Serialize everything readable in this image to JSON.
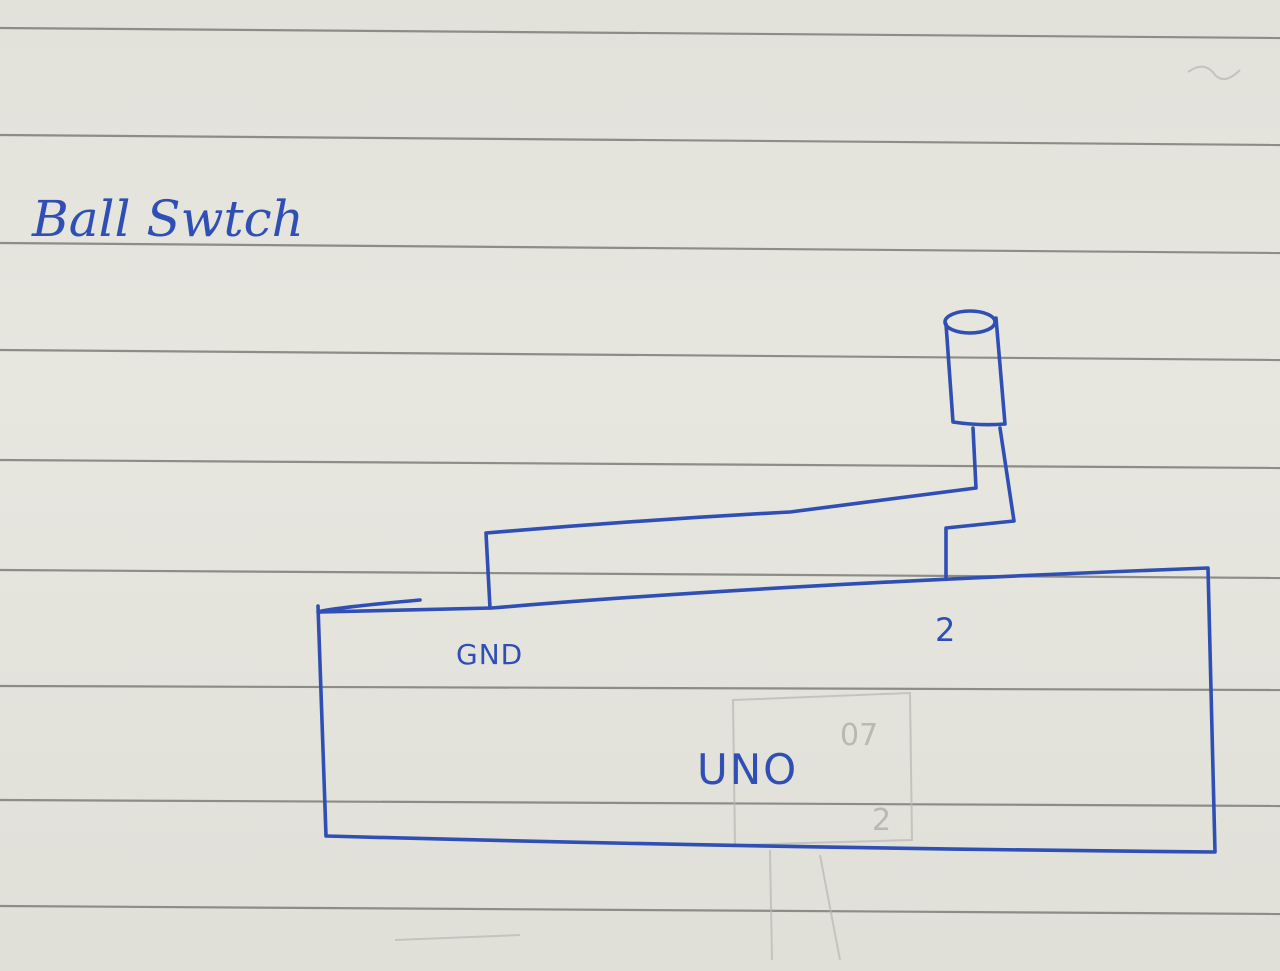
{
  "heading": "Ball Swtch",
  "board": {
    "name": "UNO",
    "pins": {
      "gnd": "GND",
      "signal": "2"
    }
  },
  "component": {
    "icon": "ball-switch-icon"
  },
  "ink_color": "#2f4fb5",
  "paper_color": "#e4e3dc",
  "rule_color": "#8d8c87"
}
